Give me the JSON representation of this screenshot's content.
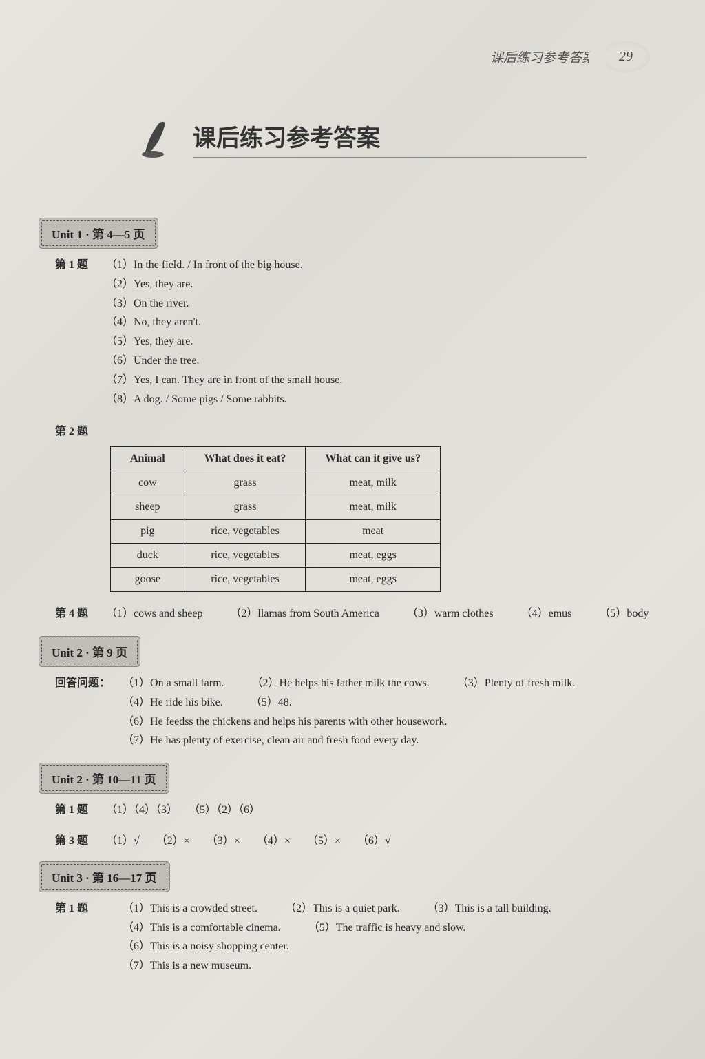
{
  "header": {
    "section_label": "课后练习参考答案",
    "page_number": "29"
  },
  "title": "课后练习参考答案",
  "units": [
    {
      "tag": "Unit 1 · 第 4—5 页",
      "questions": [
        {
          "label": "第 1 题",
          "items": [
            "（1）In the field. / In front of the big house.",
            "（2）Yes, they are.",
            "（3）On the river.",
            "（4）No, they aren't.",
            "（5）Yes, they are.",
            "（6）Under the tree.",
            "（7）Yes, I can. They are in front of the small house.",
            "（8）A dog. / Some pigs / Some rabbits."
          ]
        },
        {
          "label": "第 2 题",
          "table": {
            "headers": [
              "Animal",
              "What does it eat?",
              "What can it give us?"
            ],
            "rows": [
              [
                "cow",
                "grass",
                "meat, milk"
              ],
              [
                "sheep",
                "grass",
                "meat, milk"
              ],
              [
                "pig",
                "rice, vegetables",
                "meat"
              ],
              [
                "duck",
                "rice, vegetables",
                "meat, eggs"
              ],
              [
                "goose",
                "rice, vegetables",
                "meat, eggs"
              ]
            ]
          }
        },
        {
          "label": "第 4 题",
          "inline": true,
          "items": [
            "（1）cows and sheep",
            "（2）llamas from South America",
            "（3）warm clothes",
            "（4）emus",
            "（5）body"
          ]
        }
      ]
    },
    {
      "tag": "Unit 2 · 第 9 页",
      "questions": [
        {
          "label": "回答问题：",
          "inline_partial": true,
          "items": [
            "（1）On a small farm.",
            "（2）He helps his father milk the cows.",
            "（3）Plenty of fresh milk.",
            "（4）He ride his bike.",
            "（5）48.",
            "（6）He feedss the chickens and helps his parents with other housework.",
            "（7）He has plenty of exercise, clean air and fresh food every day."
          ]
        }
      ]
    },
    {
      "tag": "Unit 2 · 第 10—11 页",
      "questions": [
        {
          "label": "第 1 题",
          "single_line": "（1）（4）（3）　　（5）（2）（6）"
        },
        {
          "label": "第 3 题",
          "single_line": "（1）√　　（2）×　　（3）×　　（4）×　　（5）×　　（6）√"
        }
      ]
    },
    {
      "tag": "Unit 3 · 第 16—17 页",
      "questions": [
        {
          "label": "第 1 题",
          "inline_partial": true,
          "items": [
            "（1）This is a crowded street.",
            "（2）This is a quiet park.",
            "（3）This is a tall building.",
            "（4）This is a comfortable cinema.",
            "（5）The traffic is heavy and slow.",
            "（6）This is a noisy shopping center.",
            "（7）This is a new museum."
          ]
        }
      ]
    }
  ]
}
